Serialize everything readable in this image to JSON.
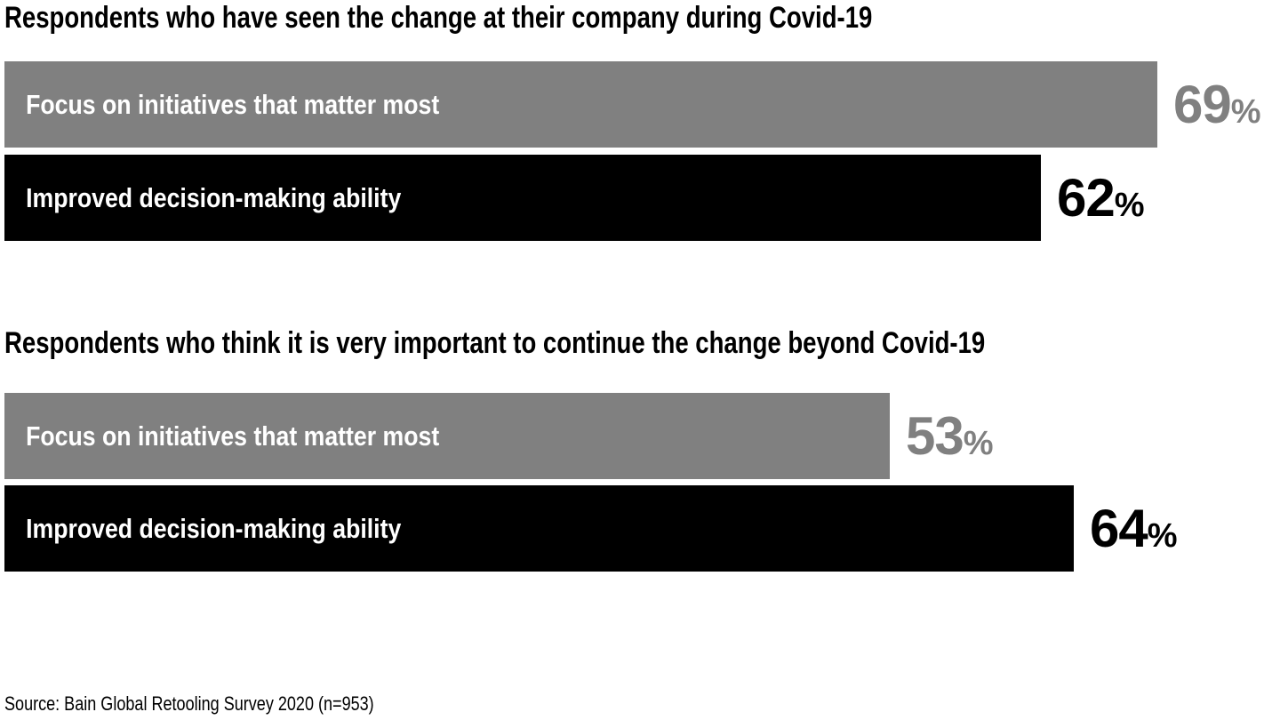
{
  "chart_data": {
    "type": "bar",
    "orientation": "horizontal",
    "unit": "%",
    "xlim": [
      0,
      100
    ],
    "grid": false,
    "legend": "none",
    "colors": {
      "focus_bar": "#808080",
      "improved_bar": "#000000",
      "background": "#ffffff"
    },
    "sections": [
      {
        "title": "Respondents who have seen the change at their company during Covid-19",
        "bars": [
          {
            "label": "Focus on initiatives that matter most",
            "value": 69,
            "color": "#808080"
          },
          {
            "label": "Improved decision-making ability",
            "value": 62,
            "color": "#000000"
          }
        ]
      },
      {
        "title": "Respondents who think it is very important to continue the change beyond Covid-19",
        "bars": [
          {
            "label": "Focus on initiatives that matter most",
            "value": 53,
            "color": "#808080"
          },
          {
            "label": "Improved decision-making ability",
            "value": 64,
            "color": "#000000"
          }
        ]
      }
    ],
    "source": "Source: Bain Global Retooling Survey 2020 (n=953)"
  }
}
